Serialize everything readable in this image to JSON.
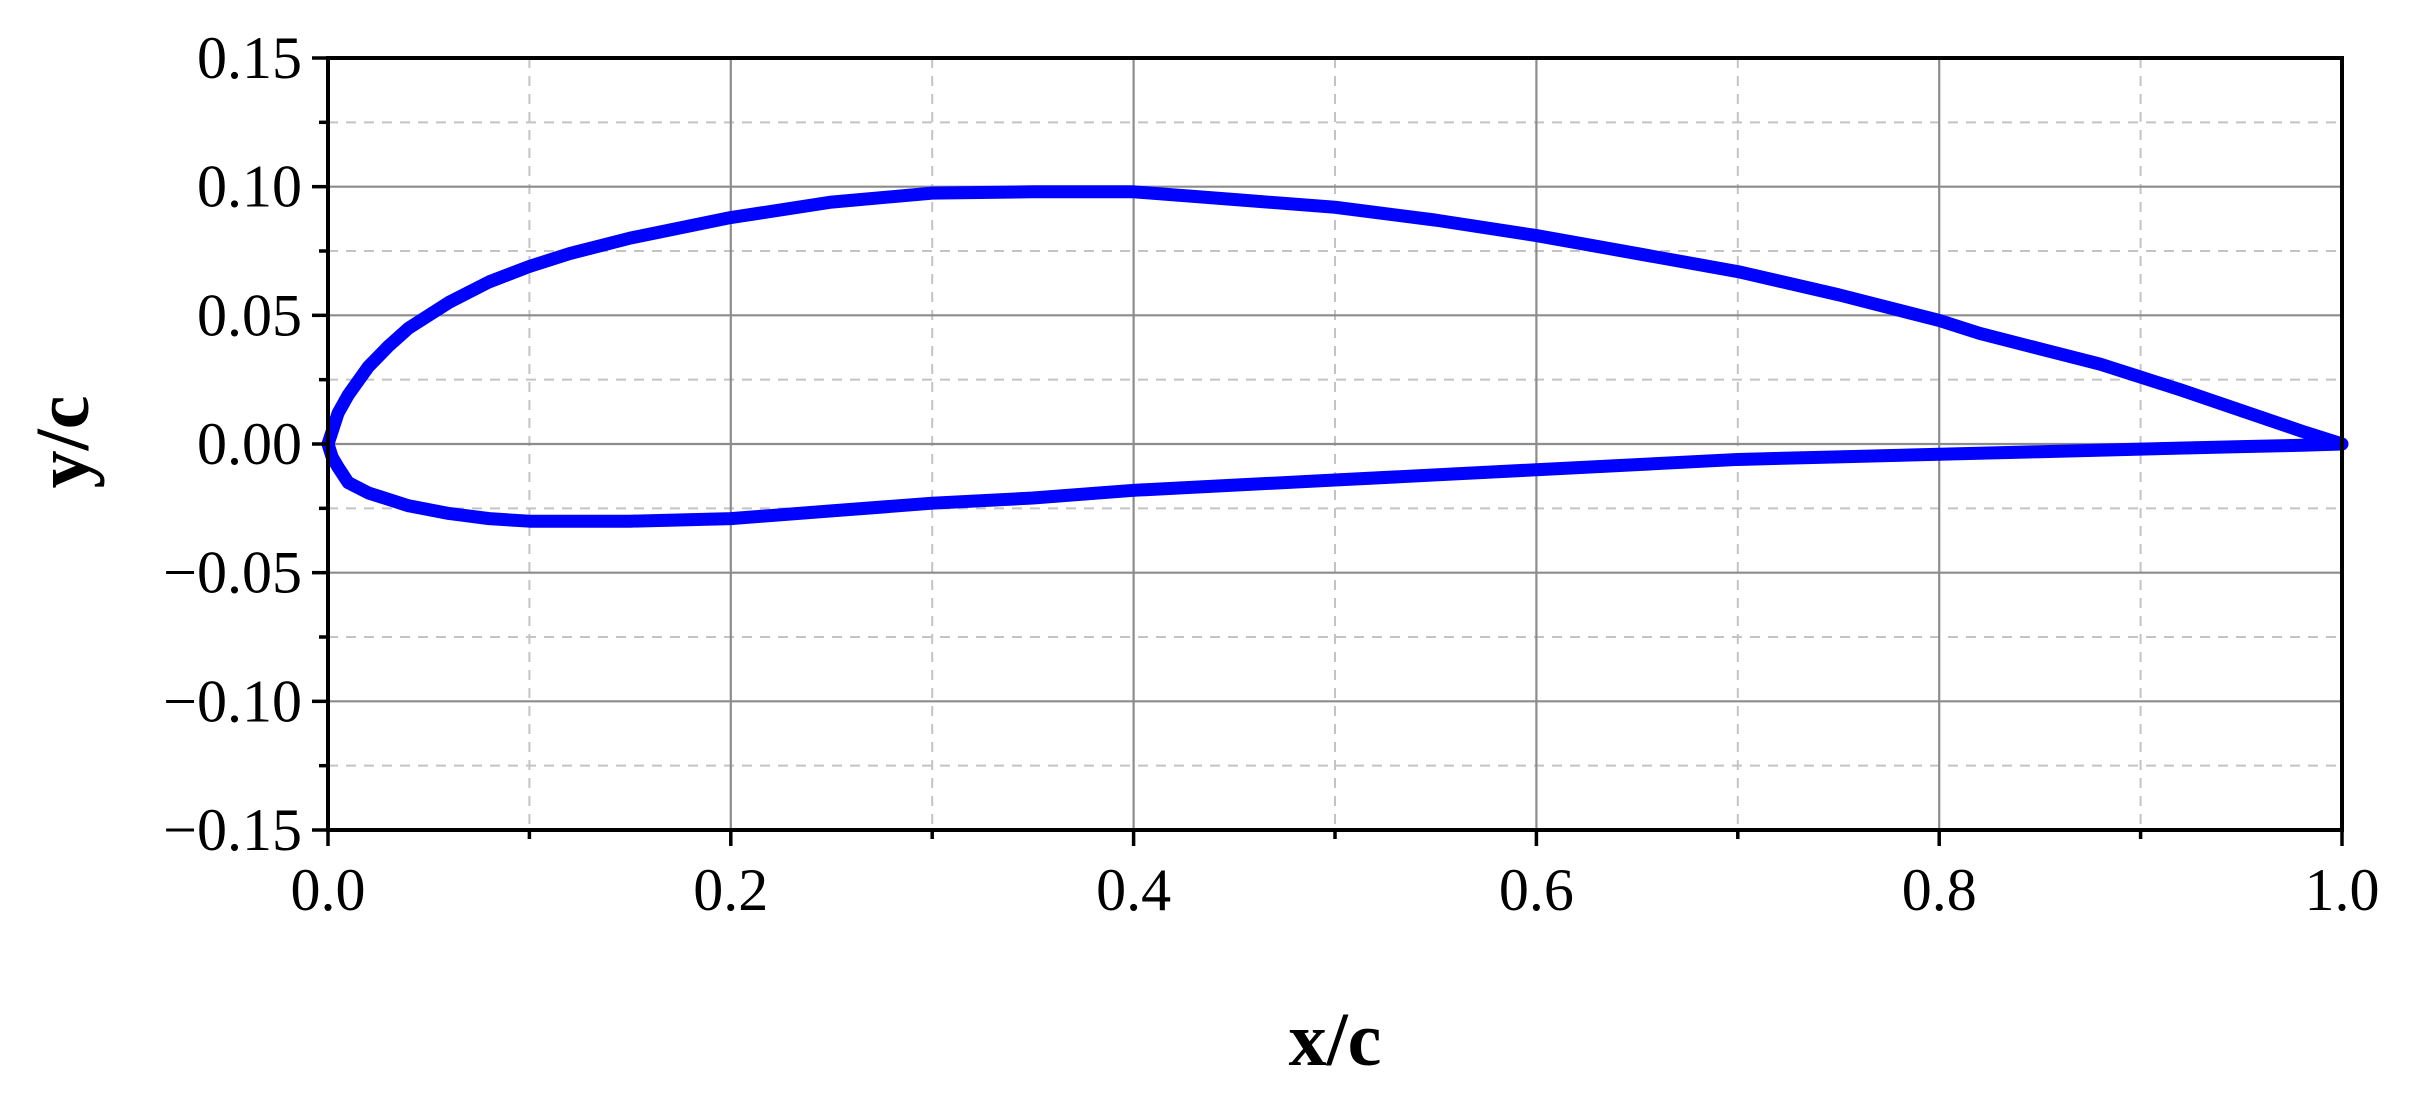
{
  "chart_data": {
    "type": "line",
    "xlabel": "x/c",
    "ylabel": "y/c",
    "xlim": [
      0.0,
      1.0
    ],
    "ylim": [
      -0.15,
      0.15
    ],
    "x_ticks": [
      0.0,
      0.2,
      0.4,
      0.6,
      0.8,
      1.0
    ],
    "x_tick_labels": [
      "0.0",
      "0.2",
      "0.4",
      "0.6",
      "0.8",
      "1.0"
    ],
    "y_ticks": [
      -0.15,
      -0.1,
      -0.05,
      0.0,
      0.05,
      0.1,
      0.15
    ],
    "y_tick_labels": [
      "−0.15",
      "−0.10",
      "−0.05",
      "0.00",
      "0.05",
      "0.10",
      "0.15"
    ],
    "x_minor_ticks": [
      0.1,
      0.3,
      0.5,
      0.7,
      0.9
    ],
    "y_minor_ticks": [
      -0.125,
      -0.075,
      -0.025,
      0.025,
      0.075,
      0.125
    ],
    "grid": true,
    "color": "#0000ff",
    "series": [
      {
        "x": [
          1.0,
          0.98,
          0.95,
          0.92,
          0.9,
          0.88,
          0.85,
          0.82,
          0.8,
          0.75,
          0.7,
          0.65,
          0.6,
          0.55,
          0.5,
          0.45,
          0.4,
          0.38,
          0.35,
          0.3,
          0.25,
          0.2,
          0.15,
          0.12,
          0.1,
          0.08,
          0.06,
          0.04,
          0.03,
          0.02,
          0.01,
          0.005,
          0.0,
          0.002,
          0.005,
          0.01,
          0.02,
          0.04,
          0.06,
          0.08,
          0.1,
          0.12,
          0.15,
          0.2,
          0.25,
          0.3,
          0.35,
          0.4,
          0.45,
          0.5,
          0.55,
          0.6,
          0.65,
          0.7,
          0.75,
          0.8,
          0.85,
          0.9,
          0.95,
          0.98,
          1.0
        ],
        "y": [
          0.0,
          0.005,
          0.013,
          0.021,
          0.026,
          0.031,
          0.037,
          0.043,
          0.048,
          0.058,
          0.067,
          0.074,
          0.081,
          0.087,
          0.092,
          0.095,
          0.098,
          0.098,
          0.098,
          0.0975,
          0.094,
          0.088,
          0.08,
          0.074,
          0.069,
          0.063,
          0.055,
          0.045,
          0.038,
          0.03,
          0.019,
          0.012,
          0.0,
          -0.005,
          -0.009,
          -0.015,
          -0.019,
          -0.024,
          -0.027,
          -0.029,
          -0.03,
          -0.03,
          -0.03,
          -0.029,
          -0.026,
          -0.023,
          -0.021,
          -0.018,
          -0.016,
          -0.014,
          -0.012,
          -0.01,
          -0.008,
          -0.006,
          -0.005,
          -0.004,
          -0.003,
          -0.002,
          -0.001,
          -0.0005,
          0.0
        ]
      }
    ]
  }
}
